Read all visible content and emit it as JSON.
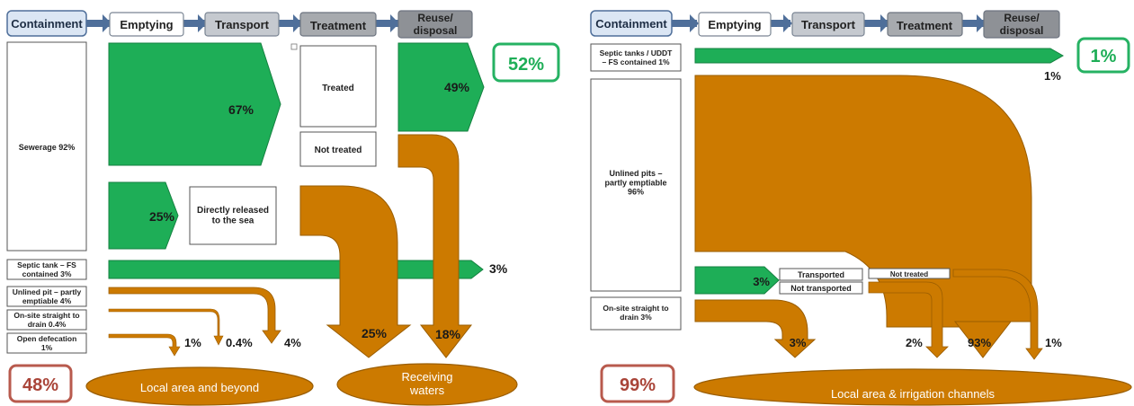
{
  "colors": {
    "green": "#1eae57",
    "green_dark": "#148040",
    "orange": "#cc7a00",
    "orange_dark": "#9a5d00",
    "stage_light": "#dbe6f4",
    "stage_mid": "#c5c9cf",
    "stage_dark": "#a7aaae",
    "stage_arrow": "#4f6f9a",
    "safe_outline": "#26b263",
    "unsafe_outline": "#b85a4d",
    "unsafe_text": "#a94438"
  },
  "left": {
    "stages": [
      "Containment",
      "Emptying",
      "Transport",
      "Treatment",
      "Reuse/\ndisposal"
    ],
    "containment": {
      "sewerage": "Sewerage 92%",
      "septic": "Septic tank – FS\ncontained 3%",
      "unlined": "Unlined pit – partly\nemptiable 4%",
      "onsite": "On-site straight to\ndrain 0.4%",
      "open": "Open defecation\n1%"
    },
    "labels": {
      "p67": "67%",
      "treated": "Treated",
      "not_treated": "Not treated",
      "p49": "49%",
      "p25a": "25%",
      "released": "Directly released\nto the sea",
      "p3": "3%",
      "p1": "1%",
      "p04": "0.4%",
      "p4": "4%",
      "p25b": "25%",
      "p18": "18%"
    },
    "safe": "52%",
    "unsafe": "48%",
    "dest1": "Local area and beyond",
    "dest2": "Receiving\nwaters"
  },
  "right": {
    "stages": [
      "Containment",
      "Emptying",
      "Transport",
      "Treatment",
      "Reuse/\ndisposal"
    ],
    "containment": {
      "septic": "Septic tanks / UDDT\n– FS contained 1%",
      "unlined": "Unlined pits –\npartly emptiable\n96%",
      "onsite": "On-site straight to\ndrain 3%"
    },
    "labels": {
      "p1a": "1%",
      "p3a": "3%",
      "transported": "Transported",
      "not_transported": "Not transported",
      "not_treated": "Not treated",
      "p3b": "3%",
      "p2": "2%",
      "p93": "93%",
      "p1b": "1%"
    },
    "safe": "1%",
    "unsafe": "99%",
    "dest": "Local area & irrigation channels"
  }
}
